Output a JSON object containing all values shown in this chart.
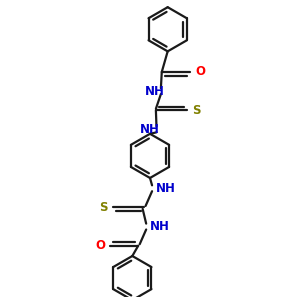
{
  "bg_color": "#ffffff",
  "bond_color": "#1a1a1a",
  "N_color": "#0000cc",
  "O_color": "#ff0000",
  "S_color": "#808000",
  "line_width": 1.6,
  "fig_size": [
    3.0,
    3.0
  ],
  "dpi": 100,
  "xlim": [
    0,
    10
  ],
  "ylim": [
    0,
    10
  ]
}
